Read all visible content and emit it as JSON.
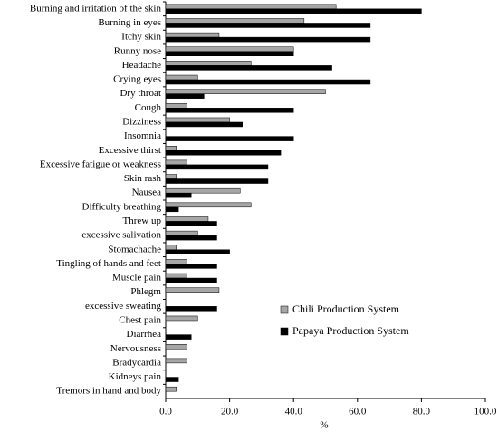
{
  "chart_data": {
    "type": "barh",
    "xlabel": "%",
    "categories": [
      "Burning and irritation of the skin",
      "Burning in eyes",
      "Itchy skin",
      "Runny nose",
      "Headache",
      "Crying eyes",
      "Dry throat",
      "Cough",
      "Dizziness",
      "Insomnia",
      "Excessive thirst",
      "Excessive fatigue or weakness",
      "Skin rash",
      "Nausea",
      "Difficulty breathing",
      "Threw up",
      "excessive salivation",
      "Stomachache",
      "Tingling of hands and feet",
      "Muscle pain",
      "Phlegm",
      "excessive sweating",
      "Chest pain",
      "Diarrhea",
      "Nervousness",
      "Bradycardia",
      "Kidneys pain",
      "Tremors in hand and body"
    ],
    "series": [
      {
        "name": "Chili Production System",
        "color": "#a6a6a6",
        "values": [
          53.3,
          43.3,
          16.7,
          40,
          26.7,
          10,
          50,
          6.7,
          20,
          0,
          3.3,
          6.7,
          3.3,
          23.3,
          26.7,
          13.3,
          10,
          3.3,
          6.7,
          6.7,
          16.7,
          0,
          10,
          0,
          6.7,
          6.7,
          0,
          3.3
        ]
      },
      {
        "name": "Papaya Production System",
        "color": "#000000",
        "values": [
          80,
          64,
          64,
          40,
          52,
          64,
          12,
          40,
          24,
          40,
          36,
          32,
          32,
          8,
          4,
          16,
          16,
          20,
          16,
          16,
          0,
          16,
          0,
          8,
          0,
          0,
          4,
          0
        ]
      }
    ],
    "xlim": [
      0,
      100
    ],
    "xticks": [
      {
        "value": 0,
        "label": "0.0"
      },
      {
        "value": 20,
        "label": "20.0"
      },
      {
        "value": 40,
        "label": "40.0"
      },
      {
        "value": 60,
        "label": "60.0"
      },
      {
        "value": 80,
        "label": "80.0"
      },
      {
        "value": 100,
        "label": "100.0"
      }
    ],
    "legend": "lower right"
  }
}
